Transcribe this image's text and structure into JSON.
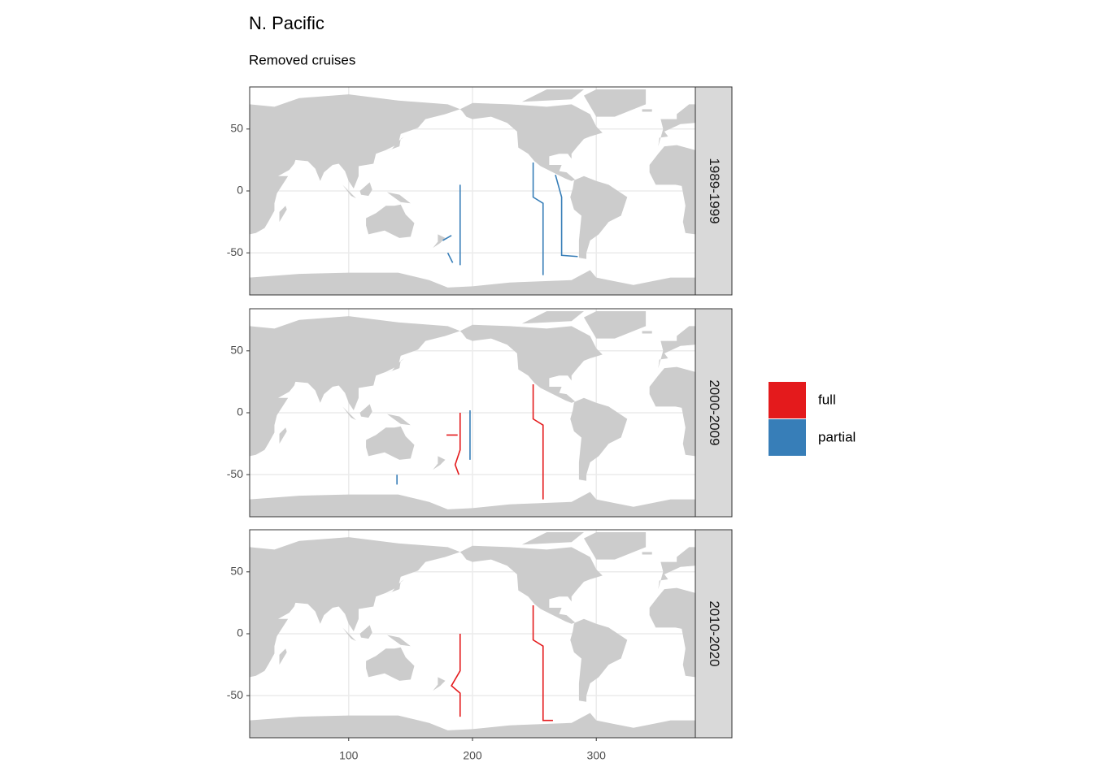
{
  "chart_data": {
    "type": "line",
    "title": "N. Pacific",
    "subtitle": "Removed cruises",
    "xlim": [
      20,
      380
    ],
    "ylim": [
      -84,
      84
    ],
    "xticks": [
      100,
      200,
      300
    ],
    "yticks": [
      -50,
      0,
      50
    ],
    "grid": true,
    "series": [
      {
        "name": "full",
        "color": "#e41a1c"
      },
      {
        "name": "partial",
        "color": "#377eb8"
      }
    ],
    "panels": [
      {
        "label": "1989-1999",
        "tracks": [
          {
            "series": "partial",
            "x": [
              249,
              249,
              257,
              257,
              null,
              267,
              272,
              272,
              285,
              null,
              190,
              190,
              null,
              176,
              183,
              null,
              180,
              184
            ],
            "y": [
              23,
              -5,
              -10,
              -68,
              null,
              13,
              -5,
              -52,
              -53,
              null,
              5,
              -60,
              null,
              -40,
              -36,
              null,
              -50,
              -58
            ]
          }
        ]
      },
      {
        "label": "2000-2009",
        "tracks": [
          {
            "series": "full",
            "x": [
              249,
              249,
              257,
              257,
              null,
              190,
              190,
              186,
              189,
              null,
              179,
              188
            ],
            "y": [
              23,
              -5,
              -10,
              -70,
              null,
              0,
              -30,
              -42,
              -50,
              null,
              -18,
              -18
            ]
          },
          {
            "series": "partial",
            "x": [
              198,
              198,
              null,
              139,
              139
            ],
            "y": [
              2,
              -38,
              null,
              -50,
              -58
            ]
          }
        ]
      },
      {
        "label": "2010-2020",
        "tracks": [
          {
            "series": "full",
            "x": [
              249,
              249,
              257,
              257,
              265,
              null,
              190,
              190,
              183,
              190,
              190
            ],
            "y": [
              23,
              -5,
              -10,
              -70,
              -70,
              null,
              0,
              -30,
              -42,
              -48,
              -67
            ]
          }
        ]
      }
    ]
  }
}
